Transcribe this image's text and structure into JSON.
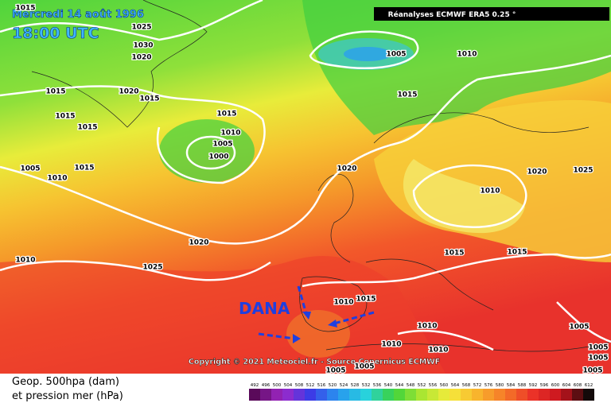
{
  "header": {
    "date": "Mercredi 14 août 1996",
    "time": "18:00 UTC",
    "source": "Réanalyses ECMWF ERA5 0.25 °"
  },
  "annotation": "DANA",
  "copyright": "Copyright © 2021 Meteociel.fr - Source Copernicus ECMWF",
  "isobar_labels": [
    1015,
    1025,
    1030,
    1020,
    1005,
    1010,
    1015,
    1020,
    1015,
    1015,
    1015,
    1015,
    1010,
    1005,
    1000,
    1015,
    1005,
    1015,
    1010,
    1020,
    1020,
    1025,
    1010,
    1020,
    1025,
    1010,
    1015,
    1015,
    1010,
    1015,
    1010,
    1005,
    1010,
    1010,
    1005,
    1005,
    1005,
    1005,
    1005
  ],
  "legend": {
    "title": [
      "Geop. 500hpa (dam)",
      "et pression mer (hPa)"
    ],
    "scale": [
      492,
      496,
      500,
      504,
      508,
      512,
      516,
      520,
      524,
      528,
      532,
      536,
      540,
      544,
      548,
      552,
      556,
      560,
      564,
      568,
      572,
      576,
      580,
      584,
      588,
      592,
      596,
      600,
      604,
      608,
      612
    ]
  }
}
